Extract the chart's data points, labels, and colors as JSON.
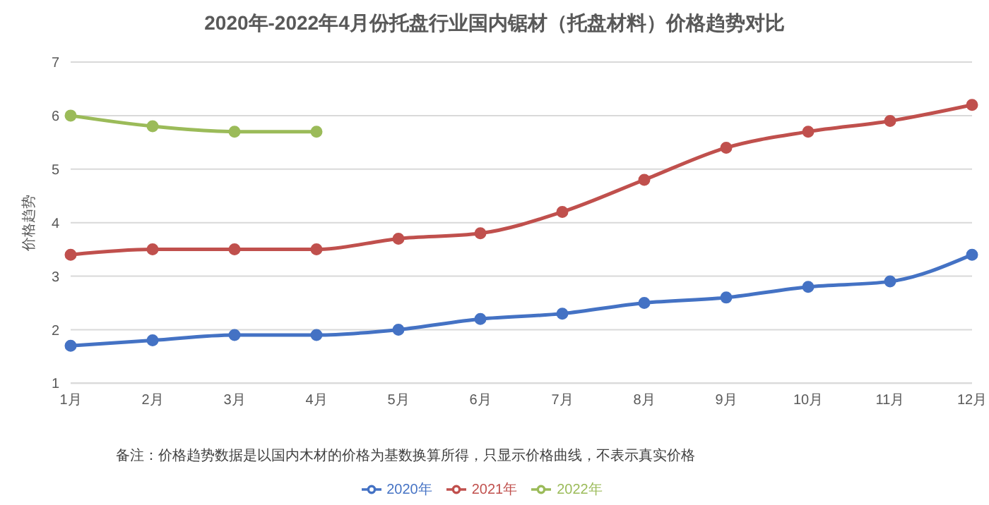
{
  "chart_data": {
    "type": "line",
    "title": "2020年-2022年4月份托盘行业国内锯材（托盘材料）价格趋势对比",
    "ylabel": "价格趋势",
    "categories": [
      "1月",
      "2月",
      "3月",
      "4月",
      "5月",
      "6月",
      "7月",
      "8月",
      "9月",
      "10月",
      "11月",
      "12月"
    ],
    "series": [
      {
        "name": "2020年",
        "color": "#4472c4",
        "values": [
          1.7,
          1.8,
          1.9,
          1.9,
          2.0,
          2.2,
          2.3,
          2.5,
          2.6,
          2.8,
          2.9,
          3.4
        ]
      },
      {
        "name": "2021年",
        "color": "#c0504d",
        "values": [
          3.4,
          3.5,
          3.5,
          3.5,
          3.7,
          3.8,
          4.2,
          4.8,
          5.4,
          5.7,
          5.9,
          6.2
        ]
      },
      {
        "name": "2022年",
        "color": "#9bbb59",
        "values": [
          6.0,
          5.8,
          5.7,
          5.7,
          null,
          null,
          null,
          null,
          null,
          null,
          null,
          null
        ]
      }
    ],
    "ylim": [
      1,
      7
    ],
    "yticks": [
      1,
      2,
      3,
      4,
      5,
      6,
      7
    ],
    "grid": "y",
    "legend": "bottom",
    "marker": "circle",
    "line_style": "solid",
    "annotations": [
      "备注：价格趋势数据是以国内木材的价格为基数换算所得，只显示价格曲线，不表示真实价格"
    ]
  }
}
